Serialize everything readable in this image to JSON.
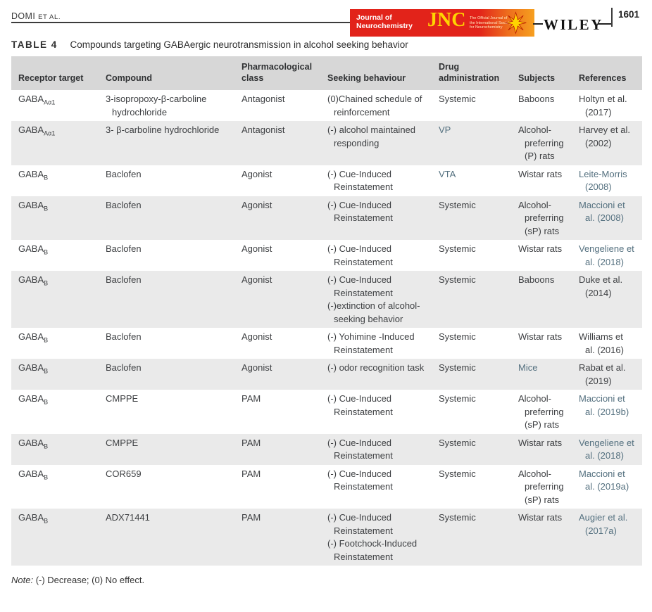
{
  "page": {
    "running_head": "DOMI",
    "running_head_suffix": "ET AL.",
    "page_number": "1601"
  },
  "journal_banner": {
    "journal_name_line1": "Journal of",
    "journal_name_line2": "Neurochemistry",
    "acronym": "JNC",
    "tagline_line1": "The Official Journal of",
    "tagline_line2": "the International Society",
    "tagline_line3": "for Neurochemistry",
    "publisher": "WILEY"
  },
  "colors": {
    "brand_red": "#e2231a",
    "brand_orange": "#f6a01f",
    "brand_yellow": "#ffd400",
    "header_band": "#d7d7d7",
    "row_shade": "#eaeaea",
    "text": "#3e4043",
    "link": "#54707f"
  },
  "table": {
    "label": "TABLE 4",
    "caption": "Compounds targeting GABAergic neurotransmission in alcohol seeking behavior",
    "columns": [
      "Receptor target",
      "Compound",
      "Pharmacological class",
      "Seeking behaviour",
      "Drug administration",
      "Subjects",
      "References"
    ],
    "rows": [
      {
        "receptor_base": "GABA",
        "receptor_sub": "Aα1",
        "compound": "3-isopropoxy-β-carboline hydrochloride",
        "pharm_class": "Antagonist",
        "seeking": [
          "(0)Chained schedule of reinforcement"
        ],
        "drug_admin": "Systemic",
        "drug_admin_link": false,
        "subjects": "Baboons",
        "subjects_link": false,
        "reference": "Holtyn et al. (2017)",
        "reference_link": false,
        "shaded": false
      },
      {
        "receptor_base": "GABA",
        "receptor_sub": "Aα1",
        "compound": "3- β-carboline hydrochloride",
        "pharm_class": "Antagonist",
        "seeking": [
          "(-) alcohol maintained responding"
        ],
        "drug_admin": "VP",
        "drug_admin_link": true,
        "subjects": "Alcohol-preferring (P) rats",
        "subjects_link": false,
        "reference": "Harvey et al. (2002)",
        "reference_link": false,
        "shaded": true
      },
      {
        "receptor_base": "GABA",
        "receptor_sub": "B",
        "compound": "Baclofen",
        "pharm_class": "Agonist",
        "seeking": [
          "(-) Cue-Induced Reinstatement"
        ],
        "drug_admin": "VTA",
        "drug_admin_link": true,
        "subjects": "Wistar rats",
        "subjects_link": false,
        "reference": "Leite-Morris (2008)",
        "reference_link": true,
        "shaded": false
      },
      {
        "receptor_base": "GABA",
        "receptor_sub": "B",
        "compound": "Baclofen",
        "pharm_class": "Agonist",
        "seeking": [
          "(-) Cue-Induced Reinstatement"
        ],
        "drug_admin": "Systemic",
        "drug_admin_link": false,
        "subjects": "Alcohol-preferring (sP) rats",
        "subjects_link": false,
        "reference": "Maccioni et al. (2008)",
        "reference_link": true,
        "shaded": true
      },
      {
        "receptor_base": "GABA",
        "receptor_sub": "B",
        "compound": "Baclofen",
        "pharm_class": "Agonist",
        "seeking": [
          "(-) Cue-Induced Reinstatement"
        ],
        "drug_admin": "Systemic",
        "drug_admin_link": false,
        "subjects": "Wistar rats",
        "subjects_link": false,
        "reference": "Vengeliene et al. (2018)",
        "reference_link": true,
        "shaded": false
      },
      {
        "receptor_base": "GABA",
        "receptor_sub": "B",
        "compound": "Baclofen",
        "pharm_class": "Agonist",
        "seeking": [
          "(-) Cue-Induced Reinstatement",
          "(-)extinction of alcohol-seeking behavior"
        ],
        "drug_admin": "Systemic",
        "drug_admin_link": false,
        "subjects": "Baboons",
        "subjects_link": false,
        "reference": "Duke et al. (2014)",
        "reference_link": false,
        "shaded": true
      },
      {
        "receptor_base": "GABA",
        "receptor_sub": "B",
        "compound": "Baclofen",
        "pharm_class": "Agonist",
        "seeking": [
          "(-) Yohimine -Induced Reinstatement"
        ],
        "drug_admin": "Systemic",
        "drug_admin_link": false,
        "subjects": "Wistar rats",
        "subjects_link": false,
        "reference": "Williams et al. (2016)",
        "reference_link": false,
        "shaded": false
      },
      {
        "receptor_base": "GABA",
        "receptor_sub": "B",
        "compound": "Baclofen",
        "pharm_class": "Agonist",
        "seeking": [
          "(-) odor recognition task"
        ],
        "drug_admin": "Systemic",
        "drug_admin_link": false,
        "subjects": "Mice",
        "subjects_link": true,
        "reference": "Rabat et al. (2019)",
        "reference_link": false,
        "shaded": true
      },
      {
        "receptor_base": "GABA",
        "receptor_sub": "B",
        "compound": "CMPPE",
        "pharm_class": "PAM",
        "seeking": [
          "(-) Cue-Induced Reinstatement"
        ],
        "drug_admin": "Systemic",
        "drug_admin_link": false,
        "subjects": "Alcohol-preferring (sP) rats",
        "subjects_link": false,
        "reference": "Maccioni et al. (2019b)",
        "reference_link": true,
        "shaded": false
      },
      {
        "receptor_base": "GABA",
        "receptor_sub": "B",
        "compound": "CMPPE",
        "pharm_class": "PAM",
        "seeking": [
          "(-) Cue-Induced Reinstatement"
        ],
        "drug_admin": "Systemic",
        "drug_admin_link": false,
        "subjects": "Wistar rats",
        "subjects_link": false,
        "reference": "Vengeliene et al. (2018)",
        "reference_link": true,
        "shaded": true
      },
      {
        "receptor_base": "GABA",
        "receptor_sub": "B",
        "compound": "COR659",
        "pharm_class": "PAM",
        "seeking": [
          "(-) Cue-Induced Reinstatement"
        ],
        "drug_admin": "Systemic",
        "drug_admin_link": false,
        "subjects": "Alcohol-preferring (sP) rats",
        "subjects_link": false,
        "reference": "Maccioni et al. (2019a)",
        "reference_link": true,
        "shaded": false
      },
      {
        "receptor_base": "GABA",
        "receptor_sub": "B",
        "compound": "ADX71441",
        "pharm_class": "PAM",
        "seeking": [
          "(-) Cue-Induced Reinstatement",
          "(-) Footchock-Induced Reinstatement"
        ],
        "drug_admin": "Systemic",
        "drug_admin_link": false,
        "subjects": "Wistar rats",
        "subjects_link": false,
        "reference": "Augier et al. (2017a)",
        "reference_link": true,
        "shaded": true
      }
    ],
    "note_label": "Note:",
    "note_text": " (-) Decrease; (0) No effect."
  }
}
